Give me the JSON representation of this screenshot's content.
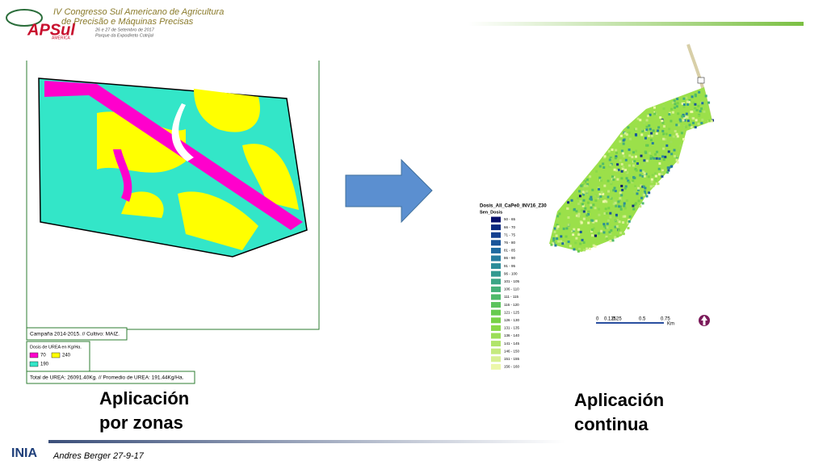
{
  "header": {
    "logo": "APSul",
    "logo_sub": "AMÉRICA",
    "title_line1": "IV Congresso Sul Americano de Agricultura",
    "title_line2": "de Precisão e Máquinas Precisas",
    "date": "26 e 27 de Setembro de 2017",
    "place": "Parque da Expodireto Cotrijal"
  },
  "left_map": {
    "campaign": "Campaña 2014-2015.  //  Cultivo: MAIZ.",
    "legend_title": "Dosis de UREA en Kg/Ha.",
    "legend": [
      {
        "label": "70",
        "color": "#ff00cc"
      },
      {
        "label": "240",
        "color": "#ffff00"
      },
      {
        "label": "190",
        "color": "#33e6c8"
      }
    ],
    "total": "Total de UREA: 26091.40Kg.  //  Promedio de UREA: 191.44Kg/Ha.",
    "caption_line1": "Aplicación",
    "caption_line2": "por zonas"
  },
  "right_map": {
    "legend_title": "Dosis_All_CaPe0_INV16_Z30",
    "legend_subtitle": "Sen_Dosis",
    "legend": [
      {
        "label": "50 - 65",
        "color": "#08106b"
      },
      {
        "label": "66 - 70",
        "color": "#0d2a80"
      },
      {
        "label": "71 - 75",
        "color": "#14408f"
      },
      {
        "label": "76 - 80",
        "color": "#1a5599"
      },
      {
        "label": "81 - 85",
        "color": "#1f6aa0"
      },
      {
        "label": "86 - 90",
        "color": "#257c9f"
      },
      {
        "label": "91 - 95",
        "color": "#2b8c9a"
      },
      {
        "label": "96 - 100",
        "color": "#339a91"
      },
      {
        "label": "101 - 105",
        "color": "#3ba585"
      },
      {
        "label": "106 - 110",
        "color": "#45b078"
      },
      {
        "label": "111 - 115",
        "color": "#4fba6a"
      },
      {
        "label": "116 - 120",
        "color": "#5ac35c"
      },
      {
        "label": "121 - 125",
        "color": "#67cb4f"
      },
      {
        "label": "126 - 130",
        "color": "#77d247"
      },
      {
        "label": "131 - 135",
        "color": "#89d94a"
      },
      {
        "label": "136 - 140",
        "color": "#9cde58"
      },
      {
        "label": "141 - 145",
        "color": "#b0e46a"
      },
      {
        "label": "146 - 150",
        "color": "#c4ea7e"
      },
      {
        "label": "151 - 155",
        "color": "#d8f093"
      },
      {
        "label": "156 - 160",
        "color": "#ecf7aa"
      }
    ],
    "scale": [
      "0",
      "0.125",
      "0.25",
      "0.5",
      "0.75",
      "Km"
    ],
    "caption_line1": "Aplicación",
    "caption_line2": "continua"
  },
  "footer": {
    "logo": "INIA",
    "author": "Andres Berger 27-9-17"
  }
}
